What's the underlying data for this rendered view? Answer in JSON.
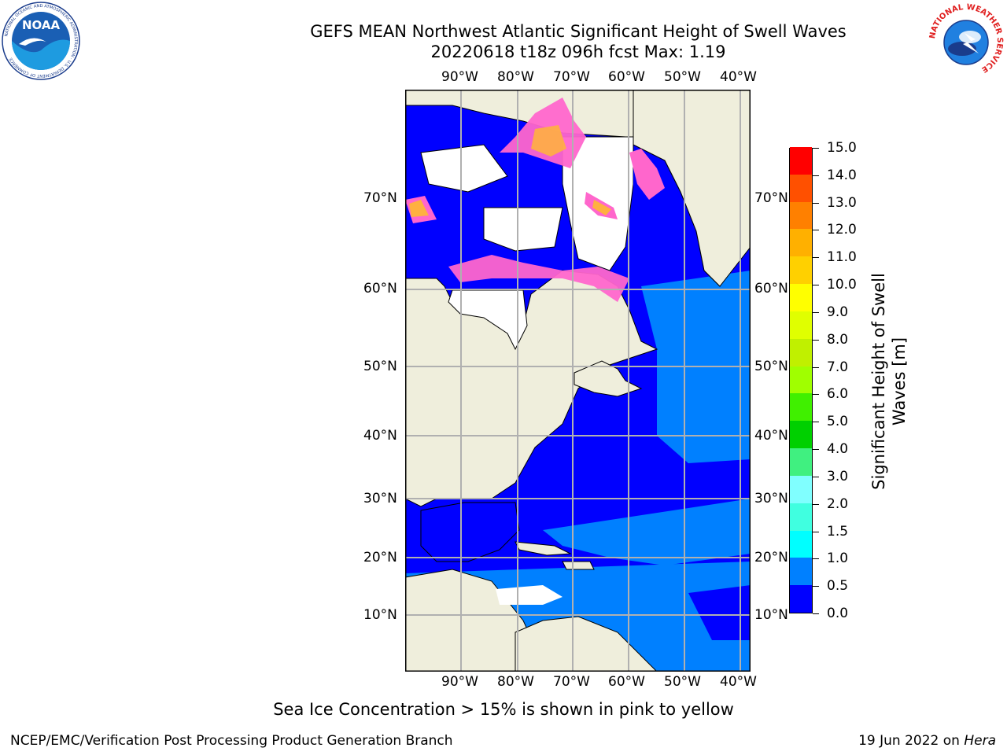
{
  "title": {
    "line1": "GEFS MEAN Northwest Atlantic Significant Height of Swell Waves",
    "line2": "20220618 t18z 096h fcst   Max: 1.19"
  },
  "logos": {
    "noaa": {
      "icon": "noaa-logo-icon",
      "text": "NOAA",
      "ring_text": "NATIONAL OCEANIC AND ATMOSPHERIC ADMINISTRATION · U.S. DEPARTMENT OF COMMERCE"
    },
    "nws": {
      "icon": "nws-logo-icon",
      "ring_text": "NATIONAL WEATHER SERVICE"
    }
  },
  "map": {
    "lon_labels": [
      "90°W",
      "80°W",
      "70°W",
      "60°W",
      "50°W",
      "40°W"
    ],
    "lat_labels": [
      "70°N",
      "60°N",
      "50°N",
      "40°N",
      "30°N",
      "20°N",
      "10°N"
    ],
    "colors": {
      "land": "#efeedc",
      "ice_or_missing": "#ffffff",
      "deep_blue": "#0000ff",
      "mid_blue": "#0080ff",
      "cyan": "#00e0f0",
      "ice_pink": "#ff66cc",
      "ice_orange": "#ffb040",
      "grid": "#b0b0b0",
      "coast": "#000000"
    }
  },
  "colorbar": {
    "title_line1": "Significant Height of Swell",
    "title_line2": "Waves [m]",
    "levels": [
      "15.0",
      "14.0",
      "13.0",
      "12.0",
      "11.0",
      "10.0",
      "9.0",
      "8.0",
      "7.0",
      "6.0",
      "5.0",
      "4.0",
      "3.0",
      "2.0",
      "1.5",
      "1.0",
      "0.5",
      "0.0"
    ],
    "colors_bottom_to_top": [
      "#0000ff",
      "#0080ff",
      "#00ffff",
      "#40ffe0",
      "#80ffff",
      "#40f080",
      "#00d000",
      "#40f000",
      "#a0ff00",
      "#c0f000",
      "#e0ff00",
      "#ffff00",
      "#ffd000",
      "#ffb000",
      "#ff8000",
      "#ff5000",
      "#ff0000"
    ]
  },
  "note": "Sea Ice Concentration > 15% is shown in pink to yellow",
  "footer": {
    "left": "NCEP/EMC/Verification Post Processing Product Generation Branch",
    "right_prefix": "19 Jun 2022 on ",
    "right_host": "Hera"
  }
}
